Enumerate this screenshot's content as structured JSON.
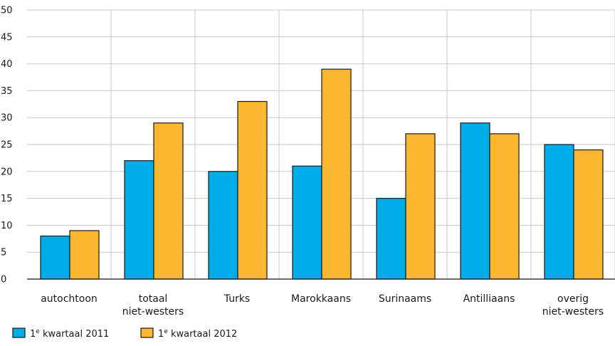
{
  "chart_data": {
    "type": "bar",
    "categories": [
      [
        "autochtoon"
      ],
      [
        "totaal",
        "niet-westers"
      ],
      [
        "Turks"
      ],
      [
        "Marokkaans"
      ],
      [
        "Surinaams"
      ],
      [
        "Antilliaans"
      ],
      [
        "overig",
        "niet-westers"
      ]
    ],
    "series": [
      {
        "name_prefix": "1",
        "name_sup": "e",
        "name_suffix": " kwartaal 2011",
        "color": "#00ade8",
        "values": [
          8,
          22,
          20,
          21,
          15,
          29,
          25
        ]
      },
      {
        "name_prefix": "1",
        "name_sup": "e",
        "name_suffix": " kwartaal 2012",
        "color": "#fbb72f",
        "values": [
          9,
          29,
          33,
          39,
          27,
          27,
          24
        ]
      }
    ],
    "ylim": [
      0,
      50
    ],
    "yticks": [
      0,
      5,
      10,
      15,
      20,
      25,
      30,
      35,
      40,
      45,
      50
    ],
    "grid": true,
    "legend_position": "bottom-left",
    "xlabel": "",
    "ylabel": "",
    "title": ""
  }
}
